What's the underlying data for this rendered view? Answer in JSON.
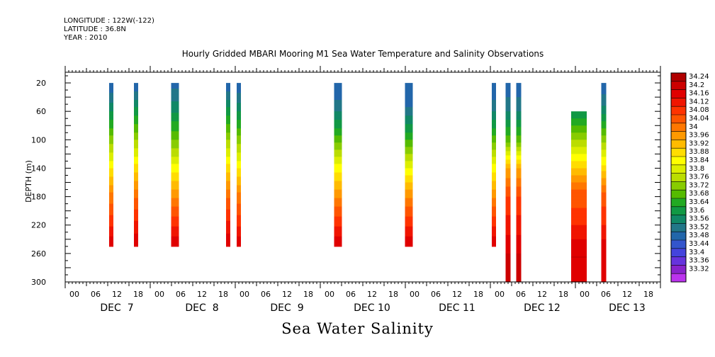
{
  "header": {
    "longitude": "LONGITUDE : 122W(-122)",
    "latitude": "LATITUDE : 36.8N",
    "year": "YEAR : 2010"
  },
  "caption": "Sea Water Salinity",
  "chart_data": {
    "type": "heatmap",
    "title": "Hourly Gridded MBARI Mooring M1 Sea Water Temperature and Salinity Observations",
    "ylabel": "DEPTH (m)",
    "xlabel": "",
    "ylim": [
      300,
      0
    ],
    "y_ticks": [
      "20",
      "60",
      "100",
      "140",
      "180",
      "220",
      "260",
      "300"
    ],
    "x_hour_ticks": [
      "00",
      "06",
      "12",
      "18",
      "00",
      "06",
      "12",
      "18",
      "00",
      "06",
      "12",
      "18",
      "00",
      "06",
      "12",
      "18",
      "00",
      "06",
      "12",
      "18",
      "00",
      "06",
      "12",
      "18",
      "00",
      "06",
      "12",
      "18"
    ],
    "x_day_labels": [
      "DEC  7",
      "DEC  8",
      "DEC  9",
      "DEC 10",
      "DEC 11",
      "DEC 12",
      "DEC 13"
    ],
    "x_start": "DEC 7 00:00",
    "x_end": "DEC 13 24:00",
    "colorbar": {
      "levels": [
        "34.24",
        "34.2",
        "34.16",
        "34.12",
        "34.08",
        "34.04",
        "34",
        "33.96",
        "33.92",
        "33.88",
        "33.84",
        "33.8",
        "33.76",
        "33.72",
        "33.68",
        "33.64",
        "33.6",
        "33.56",
        "33.52",
        "33.48",
        "33.44",
        "33.4",
        "33.36",
        "33.32"
      ],
      "colors": [
        "#b00000",
        "#cc0000",
        "#e00000",
        "#f01500",
        "#ff3300",
        "#ff5500",
        "#ff7700",
        "#ff9900",
        "#ffbb00",
        "#ffdd00",
        "#ffff00",
        "#ddee00",
        "#bbdd00",
        "#88cc00",
        "#55bb00",
        "#22aa22",
        "#119944",
        "#118866",
        "#227788",
        "#2266aa",
        "#3355cc",
        "#4444dd",
        "#6633dd",
        "#8822cc",
        "#bb33ee"
      ]
    },
    "profiles": [
      {
        "time": "DEC 7 13:00",
        "top": 20,
        "bottom": 250,
        "values": [
          [
            20,
            33.48
          ],
          [
            55,
            33.58
          ],
          [
            95,
            33.72
          ],
          [
            135,
            33.86
          ],
          [
            175,
            34.0
          ],
          [
            215,
            34.1
          ],
          [
            250,
            34.2
          ]
        ]
      },
      {
        "time": "DEC 7 20:00",
        "top": 20,
        "bottom": 250,
        "values": [
          [
            20,
            33.48
          ],
          [
            55,
            33.6
          ],
          [
            95,
            33.74
          ],
          [
            135,
            33.88
          ],
          [
            175,
            34.02
          ],
          [
            215,
            34.12
          ],
          [
            250,
            34.2
          ]
        ]
      },
      {
        "time": "DEC 8 07:00",
        "top": 20,
        "bottom": 250,
        "values": [
          [
            20,
            33.5
          ],
          [
            55,
            33.58
          ],
          [
            95,
            33.7
          ],
          [
            135,
            33.84
          ],
          [
            175,
            33.98
          ],
          [
            215,
            34.1
          ],
          [
            250,
            34.2
          ]
        ]
      },
      {
        "time": "DEC 8 22:00",
        "top": 20,
        "bottom": 250,
        "values": [
          [
            20,
            33.48
          ],
          [
            55,
            33.6
          ],
          [
            95,
            33.74
          ],
          [
            135,
            33.88
          ],
          [
            175,
            34.02
          ],
          [
            215,
            34.12
          ],
          [
            250,
            34.2
          ]
        ]
      },
      {
        "time": "DEC 9 01:00",
        "top": 20,
        "bottom": 250,
        "values": [
          [
            20,
            33.48
          ],
          [
            55,
            33.58
          ],
          [
            95,
            33.72
          ],
          [
            135,
            33.86
          ],
          [
            175,
            34.0
          ],
          [
            215,
            34.1
          ],
          [
            250,
            34.2
          ]
        ]
      },
      {
        "time": "DEC 10 05:00",
        "top": 20,
        "bottom": 250,
        "values": [
          [
            20,
            33.48
          ],
          [
            55,
            33.54
          ],
          [
            95,
            33.68
          ],
          [
            135,
            33.84
          ],
          [
            175,
            33.98
          ],
          [
            215,
            34.1
          ],
          [
            250,
            34.2
          ]
        ]
      },
      {
        "time": "DEC 11 01:00",
        "top": 20,
        "bottom": 250,
        "values": [
          [
            20,
            33.48
          ],
          [
            55,
            33.52
          ],
          [
            95,
            33.66
          ],
          [
            135,
            33.82
          ],
          [
            175,
            33.98
          ],
          [
            215,
            34.1
          ],
          [
            250,
            34.2
          ]
        ]
      },
      {
        "time": "DEC 12 01:00",
        "top": 20,
        "bottom": 250,
        "values": [
          [
            20,
            33.48
          ],
          [
            55,
            33.54
          ],
          [
            95,
            33.68
          ],
          [
            135,
            33.84
          ],
          [
            175,
            33.98
          ],
          [
            215,
            34.1
          ],
          [
            250,
            34.2
          ]
        ]
      },
      {
        "time": "DEC 12 05:00",
        "top": 20,
        "bottom": 300,
        "values": [
          [
            20,
            33.48
          ],
          [
            60,
            33.56
          ],
          [
            100,
            33.7
          ],
          [
            140,
            33.96
          ],
          [
            180,
            34.08
          ],
          [
            220,
            34.14
          ],
          [
            260,
            34.2
          ],
          [
            300,
            34.2
          ]
        ]
      },
      {
        "time": "DEC 12 08:00",
        "top": 20,
        "bottom": 300,
        "values": [
          [
            20,
            33.48
          ],
          [
            60,
            33.56
          ],
          [
            100,
            33.7
          ],
          [
            140,
            33.96
          ],
          [
            180,
            34.08
          ],
          [
            220,
            34.14
          ],
          [
            260,
            34.2
          ],
          [
            300,
            34.2
          ]
        ]
      },
      {
        "time": "DEC 13 01:00",
        "top": 60,
        "bottom": 300,
        "values": [
          [
            60,
            33.6
          ],
          [
            100,
            33.76
          ],
          [
            135,
            33.9
          ],
          [
            170,
            34.04
          ],
          [
            210,
            34.1
          ],
          [
            240,
            34.16
          ],
          [
            265,
            34.2
          ],
          [
            300,
            34.16
          ]
        ]
      },
      {
        "time": "DEC 13 08:00",
        "top": 20,
        "bottom": 300,
        "values": [
          [
            20,
            33.48
          ],
          [
            60,
            33.58
          ],
          [
            100,
            33.74
          ],
          [
            140,
            33.9
          ],
          [
            180,
            34.06
          ],
          [
            220,
            34.12
          ],
          [
            260,
            34.2
          ],
          [
            300,
            34.16
          ]
        ]
      }
    ]
  }
}
